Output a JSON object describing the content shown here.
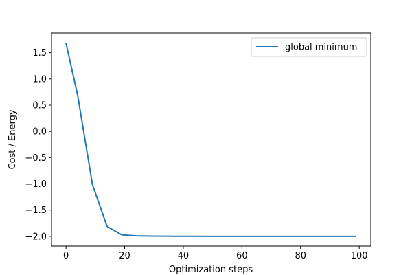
{
  "chart_data": {
    "type": "line",
    "title": "",
    "xlabel": "Optimization steps",
    "ylabel": "Cost / Energy",
    "xlim": [
      -4.95,
      103.95
    ],
    "ylim": [
      -2.185,
      1.875
    ],
    "xticks": [
      0,
      20,
      40,
      60,
      80,
      100
    ],
    "yticks": [
      -2.0,
      -1.5,
      -1.0,
      -0.5,
      0.0,
      0.5,
      1.0,
      1.5
    ],
    "xtick_labels": [
      "0",
      "20",
      "40",
      "60",
      "80",
      "100"
    ],
    "ytick_labels": [
      "−2.0",
      "−1.5",
      "−1.0",
      "−0.5",
      "0.0",
      "0.5",
      "1.0",
      "1.5"
    ],
    "grid": false,
    "legend_position": "top-right",
    "series": [
      {
        "name": "global minimum",
        "color": "#1f77b4",
        "x": [
          0,
          4,
          9,
          14,
          19,
          24,
          29,
          34,
          39,
          44,
          49,
          54,
          59,
          64,
          69,
          74,
          79,
          84,
          89,
          94,
          99
        ],
        "y": [
          1.68,
          0.68,
          -1.01,
          -1.81,
          -1.97,
          -1.99,
          -1.995,
          -1.997,
          -1.998,
          -1.999,
          -2.0,
          -2.0,
          -2.0,
          -2.0,
          -2.0,
          -2.0,
          -2.0,
          -2.0,
          -2.0,
          -2.0,
          -2.0
        ]
      }
    ]
  }
}
